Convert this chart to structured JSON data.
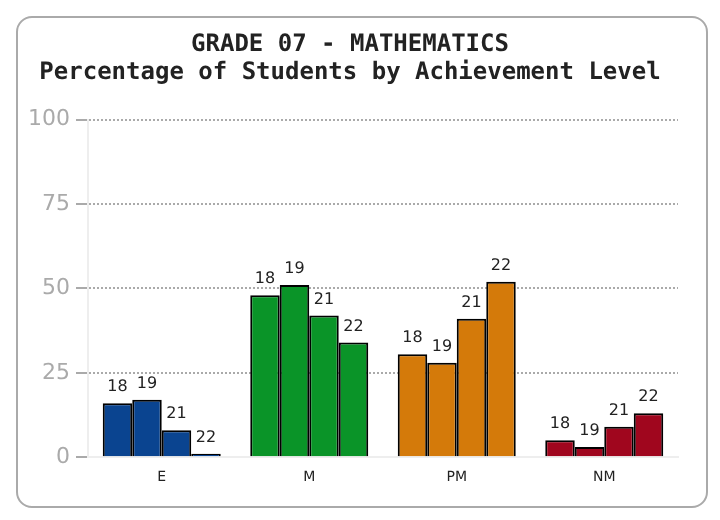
{
  "chart_data": {
    "type": "bar",
    "title": "GRADE 07 - MATHEMATICS",
    "subtitle": "Percentage of Students by Achievement Level",
    "categories": [
      "E",
      "M",
      "PM",
      "NM"
    ],
    "series": [
      {
        "name": "18",
        "colors": [
          "#0a4490",
          "#0a9428",
          "#d47a0a",
          "#a0061e"
        ],
        "values": [
          16,
          48,
          30.5,
          5
        ]
      },
      {
        "name": "19",
        "colors": [
          "#0a4490",
          "#0a9428",
          "#d47a0a",
          "#a0061e"
        ],
        "values": [
          17,
          51,
          28,
          3
        ]
      },
      {
        "name": "21",
        "colors": [
          "#0a4490",
          "#0a9428",
          "#d47a0a",
          "#a0061e"
        ],
        "values": [
          8,
          42,
          41,
          9
        ]
      },
      {
        "name": "22",
        "colors": [
          "#0a4490",
          "#0a9428",
          "#d47a0a",
          "#a0061e"
        ],
        "values": [
          1,
          34,
          52,
          13
        ]
      }
    ],
    "ylim": [
      0,
      100
    ],
    "yticks": [
      0,
      25,
      50,
      75,
      100
    ],
    "grid": "y",
    "legend": false
  }
}
